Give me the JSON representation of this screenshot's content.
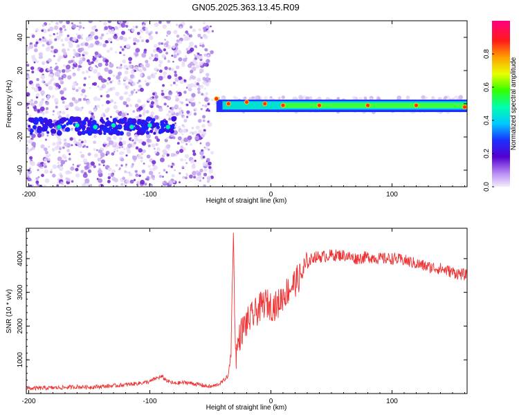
{
  "title": "GN05.2025.363.13.45.R09",
  "chart_data": [
    {
      "type": "heatmap",
      "xlabel": "Height of straight line (km)",
      "ylabel": "Frequency (Hz)",
      "xlim": [
        -202,
        162
      ],
      "ylim": [
        -50,
        50
      ],
      "xticks": [
        -200,
        -100,
        0,
        100
      ],
      "yticks": [
        -40,
        -20,
        0,
        20,
        40
      ],
      "grid": false,
      "ridge": [
        {
          "x": -175,
          "y": -14
        },
        {
          "x": -160,
          "y": -13
        },
        {
          "x": -145,
          "y": -14
        },
        {
          "x": -130,
          "y": -13
        },
        {
          "x": -115,
          "y": -14
        },
        {
          "x": -100,
          "y": -13
        },
        {
          "x": -85,
          "y": -14
        },
        {
          "x": -45,
          "y": 3
        },
        {
          "x": -35,
          "y": 0
        },
        {
          "x": -20,
          "y": 1
        },
        {
          "x": -5,
          "y": 0
        },
        {
          "x": 10,
          "y": -1
        },
        {
          "x": 40,
          "y": -1
        },
        {
          "x": 80,
          "y": -1
        },
        {
          "x": 120,
          "y": -1
        },
        {
          "x": 160,
          "y": -2
        }
      ],
      "colorbar": {
        "label": "Normalized spectral amplitude",
        "range": [
          0,
          1
        ],
        "ticks": [
          "0.0",
          "0.2",
          "0.4",
          "0.6",
          "0.8"
        ]
      }
    },
    {
      "type": "line",
      "xlabel": "Height of straight line (km)",
      "ylabel": "SNR (10 * v/v)",
      "xlim": [
        -202,
        162
      ],
      "ylim": [
        0,
        4900
      ],
      "xticks": [
        -200,
        -100,
        0,
        100
      ],
      "yticks": [
        1000,
        2000,
        3000,
        4000
      ],
      "grid": false,
      "color": "#ee3333",
      "series": [
        {
          "x": [
            -202,
            -190,
            -180,
            -170,
            -160,
            -150,
            -140,
            -130,
            -120,
            -110,
            -100,
            -95,
            -90,
            -85,
            -80,
            -70,
            -60,
            -50,
            -45,
            -40,
            -35,
            -33,
            -31,
            -30,
            -29,
            -27,
            -25,
            -20,
            -15,
            -10,
            -5,
            0,
            5,
            10,
            15,
            20,
            25,
            30,
            35,
            40,
            50,
            60,
            70,
            80,
            90,
            100,
            110,
            120,
            130,
            140,
            150,
            162
          ],
          "values": [
            150,
            160,
            170,
            180,
            200,
            190,
            210,
            230,
            260,
            300,
            350,
            450,
            500,
            360,
            300,
            330,
            270,
            200,
            250,
            350,
            550,
            1200,
            4900,
            2500,
            1100,
            1500,
            1800,
            2100,
            2300,
            2500,
            2700,
            2600,
            2600,
            2900,
            3100,
            3300,
            3500,
            3850,
            4050,
            4050,
            4100,
            4100,
            4000,
            4050,
            4000,
            4000,
            3950,
            3850,
            3750,
            3700,
            3600,
            3500
          ]
        }
      ]
    }
  ]
}
